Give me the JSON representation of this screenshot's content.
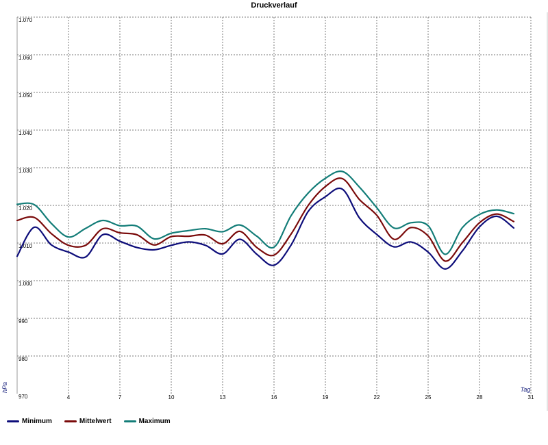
{
  "chart_data": {
    "type": "line",
    "title": "Druckverlauf",
    "xlabel": "Tag",
    "ylabel": "hPa",
    "xlim": [
      1,
      31
    ],
    "ylim": [
      970,
      1070
    ],
    "x_ticks": [
      1,
      4,
      7,
      10,
      13,
      16,
      19,
      22,
      25,
      28,
      31
    ],
    "x_tick_labels": [
      "",
      "4",
      "7",
      "10",
      "13",
      "16",
      "19",
      "22",
      "25",
      "28",
      "31"
    ],
    "y_ticks": [
      970,
      980,
      990,
      1000,
      1010,
      1020,
      1030,
      1040,
      1050,
      1060,
      1070
    ],
    "y_tick_labels": [
      "970",
      "980",
      "990",
      "1.000",
      "1.010",
      "1.020",
      "1.030",
      "1.040",
      "1.050",
      "1.060",
      "1.070"
    ],
    "grid": true,
    "legend_position": "bottom-left",
    "series": [
      {
        "name": "Minimum",
        "color": "#0d0d7a",
        "x": [
          1,
          2,
          3,
          4,
          5,
          6,
          7,
          8,
          9,
          10,
          11,
          12,
          13,
          14,
          15,
          16,
          17,
          18,
          19,
          20,
          21,
          22,
          23,
          24,
          25,
          26,
          27,
          28,
          29,
          30
        ],
        "values": [
          1006.5,
          1014.2,
          1009.5,
          1007.6,
          1006.3,
          1012.2,
          1010.5,
          1008.8,
          1008.2,
          1009.4,
          1010.3,
          1009.4,
          1007.1,
          1011.0,
          1007.0,
          1004.1,
          1009.5,
          1018.4,
          1022.3,
          1024.3,
          1016.6,
          1012.3,
          1009.0,
          1010.3,
          1007.6,
          1003.1,
          1007.9,
          1014.3,
          1017.1,
          1014.0
        ]
      },
      {
        "name": "Mittelwert",
        "color": "#7a0a0a",
        "x": [
          1,
          2,
          3,
          4,
          5,
          6,
          7,
          8,
          9,
          10,
          11,
          12,
          13,
          14,
          15,
          16,
          17,
          18,
          19,
          20,
          21,
          22,
          23,
          24,
          25,
          26,
          27,
          28,
          29,
          30
        ],
        "values": [
          1016.0,
          1016.8,
          1012.5,
          1009.4,
          1009.4,
          1013.8,
          1012.7,
          1012.2,
          1009.5,
          1011.7,
          1011.8,
          1012.1,
          1009.8,
          1013.1,
          1008.8,
          1006.8,
          1012.4,
          1020.0,
          1025.0,
          1027.1,
          1021.5,
          1017.4,
          1011.0,
          1014.1,
          1011.9,
          1005.2,
          1010.1,
          1015.4,
          1017.7,
          1015.7
        ]
      },
      {
        "name": "Maximum",
        "color": "#137d78",
        "x": [
          1,
          2,
          3,
          4,
          5,
          6,
          7,
          8,
          9,
          10,
          11,
          12,
          13,
          14,
          15,
          16,
          17,
          18,
          19,
          20,
          21,
          22,
          23,
          24,
          25,
          26,
          27,
          28,
          29,
          30
        ],
        "values": [
          1020.3,
          1020.2,
          1015.2,
          1011.6,
          1013.9,
          1016.0,
          1014.6,
          1014.5,
          1011.1,
          1012.6,
          1013.3,
          1013.8,
          1013.0,
          1014.8,
          1011.8,
          1008.9,
          1017.3,
          1023.3,
          1027.2,
          1029.0,
          1024.8,
          1019.4,
          1014.0,
          1015.4,
          1014.6,
          1007.0,
          1014.1,
          1017.6,
          1018.8,
          1017.8
        ]
      }
    ]
  }
}
